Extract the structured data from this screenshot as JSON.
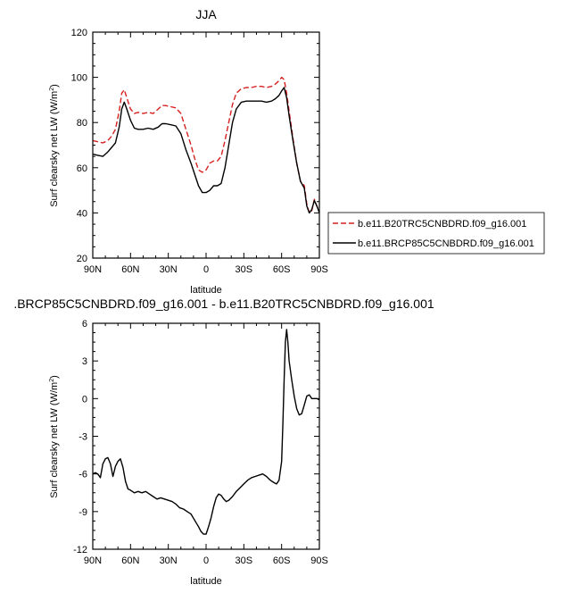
{
  "chart_data": [
    {
      "type": "line",
      "title": "JJA",
      "xlabel": "latitude",
      "ylabel_main": "Surf clearsky net LW (W/m",
      "ylabel_sup": "2",
      "ylabel_end": ")",
      "xlim": [
        90,
        -90
      ],
      "ylim": [
        20,
        120
      ],
      "xticks": [
        90,
        60,
        30,
        0,
        -30,
        -60,
        -90
      ],
      "xtick_labels": [
        "90N",
        "60N",
        "30N",
        "0",
        "30S",
        "60S",
        "90S"
      ],
      "yticks": [
        20,
        40,
        60,
        80,
        100,
        120
      ],
      "ytick_labels": [
        "20",
        "40",
        "60",
        "80",
        "100",
        "120"
      ],
      "legend_placement": "right",
      "series": [
        {
          "name": "b.e11.B20TRC5CNBDRD.f09_g16.001",
          "color": "#d62020",
          "dash": "dashed",
          "x": [
            90,
            86,
            82,
            78,
            75,
            72,
            69,
            67,
            65,
            63,
            60,
            57,
            54,
            50,
            46,
            42,
            38,
            35,
            32,
            28,
            24,
            20,
            16,
            12,
            9,
            6,
            3,
            0,
            -3,
            -6,
            -9,
            -12,
            -15,
            -18,
            -21,
            -24,
            -28,
            -32,
            -36,
            -40,
            -44,
            -48,
            -52,
            -55,
            -58,
            -60,
            -62,
            -64,
            -66,
            -69,
            -72,
            -75,
            -78,
            -80,
            -82,
            -84,
            -86,
            -88,
            -90
          ],
          "y": [
            72,
            71.5,
            71,
            72,
            74,
            77,
            85,
            93,
            94.5,
            91,
            86,
            84,
            84.5,
            84,
            84.5,
            84,
            86,
            87.5,
            87.5,
            87,
            86.5,
            84,
            77,
            70,
            64,
            59,
            58,
            59,
            62,
            63,
            63,
            65,
            72,
            80,
            88,
            93,
            95,
            95.5,
            95.5,
            96,
            96,
            95.5,
            96,
            97,
            98.5,
            100,
            99,
            93,
            85,
            73,
            62,
            54,
            52,
            44,
            40,
            41,
            46,
            43,
            41
          ]
        },
        {
          "name": "b.e11.BRCP85C5CNBDRD.f09_g16.001",
          "color": "#000000",
          "dash": "solid",
          "x": [
            90,
            86,
            82,
            78,
            75,
            72,
            69,
            67,
            65,
            63,
            60,
            57,
            54,
            50,
            46,
            42,
            38,
            35,
            32,
            28,
            24,
            20,
            16,
            12,
            9,
            6,
            3,
            0,
            -3,
            -6,
            -9,
            -12,
            -15,
            -18,
            -21,
            -24,
            -28,
            -32,
            -36,
            -40,
            -44,
            -48,
            -52,
            -55,
            -58,
            -60,
            -62,
            -64,
            -66,
            -69,
            -72,
            -75,
            -78,
            -80,
            -82,
            -84,
            -86,
            -88,
            -90
          ],
          "y": [
            66,
            65.5,
            65,
            67,
            69,
            71,
            78,
            86,
            89,
            86,
            81,
            77.5,
            77,
            77,
            77.5,
            77,
            78,
            79.5,
            79.5,
            79,
            78.5,
            75,
            68,
            62,
            57,
            52,
            49,
            49,
            50,
            52,
            52,
            53,
            60,
            70,
            80,
            86,
            89,
            89.5,
            89.5,
            89.5,
            89.5,
            89,
            89.5,
            90.5,
            92,
            94,
            95.5,
            91,
            83,
            72,
            62,
            54,
            51,
            43,
            40,
            41.5,
            45.5,
            43,
            40
          ]
        }
      ]
    },
    {
      "type": "line",
      "title": ".BRCP85C5CNBDRD.f09_g16.001 - b.e11.B20TRC5CNBDRD.f09_g16.001",
      "xlabel": "latitude",
      "ylabel_main": "Surf clearsky net LW (W/m",
      "ylabel_sup": "2",
      "ylabel_end": ")",
      "xlim": [
        90,
        -90
      ],
      "ylim": [
        -12,
        6
      ],
      "xticks": [
        90,
        60,
        30,
        0,
        -30,
        -60,
        -90
      ],
      "xtick_labels": [
        "90N",
        "60N",
        "30N",
        "0",
        "30S",
        "60S",
        "90S"
      ],
      "yticks": [
        -12,
        -9,
        -6,
        -3,
        0,
        3,
        6
      ],
      "ytick_labels": [
        "-12",
        "-9",
        "-6",
        "-3",
        "0",
        "3",
        "6"
      ],
      "series": [
        {
          "color": "#000000",
          "dash": "solid",
          "x": [
            90,
            88,
            86,
            84,
            82,
            80,
            78,
            76,
            74,
            72,
            70,
            68,
            66,
            64,
            62,
            60,
            57,
            54,
            51,
            48,
            45,
            42,
            39,
            36,
            33,
            30,
            27,
            24,
            21,
            18,
            15,
            12,
            9,
            6,
            4,
            2,
            0,
            -2,
            -4,
            -6,
            -8,
            -10,
            -12,
            -14,
            -16,
            -18,
            -21,
            -24,
            -27,
            -30,
            -33,
            -36,
            -39,
            -42,
            -45,
            -48,
            -51,
            -54,
            -56,
            -58,
            -60,
            -61,
            -62,
            -63,
            -64,
            -65,
            -66,
            -68,
            -70,
            -72,
            -74,
            -76,
            -78,
            -80,
            -82,
            -84,
            -86,
            -88,
            -90
          ],
          "y": [
            -6.0,
            -5.9,
            -6.0,
            -6.3,
            -5.2,
            -4.8,
            -4.7,
            -5.2,
            -6.2,
            -5.4,
            -5.0,
            -4.8,
            -5.5,
            -6.6,
            -7.2,
            -7.3,
            -7.5,
            -7.4,
            -7.5,
            -7.4,
            -7.6,
            -7.8,
            -8.0,
            -7.9,
            -8.0,
            -8.1,
            -8.2,
            -8.4,
            -8.7,
            -8.8,
            -9.0,
            -9.2,
            -9.7,
            -10.2,
            -10.6,
            -10.8,
            -10.8,
            -10.2,
            -9.5,
            -8.6,
            -7.9,
            -7.6,
            -7.7,
            -8.0,
            -8.2,
            -8.1,
            -7.8,
            -7.4,
            -7.1,
            -6.8,
            -6.5,
            -6.3,
            -6.2,
            -6.1,
            -6.0,
            -6.2,
            -6.5,
            -6.7,
            -6.8,
            -6.5,
            -5.0,
            -2.0,
            1.5,
            4.5,
            5.5,
            4.5,
            3.0,
            1.5,
            0.2,
            -0.8,
            -1.3,
            -1.2,
            -0.5,
            0.2,
            0.3,
            0.0,
            0.0,
            0.0,
            -0.1
          ]
        }
      ]
    }
  ]
}
